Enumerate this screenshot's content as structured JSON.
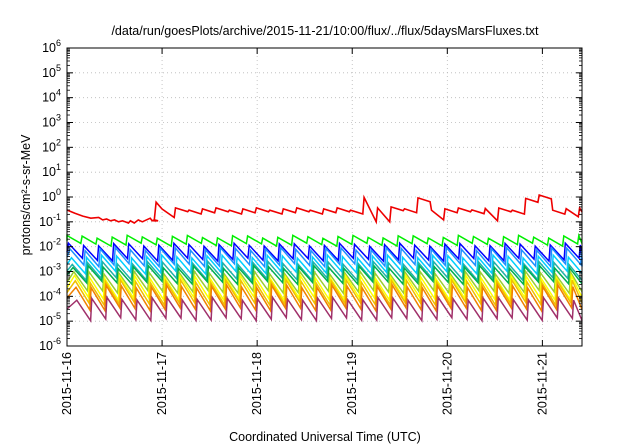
{
  "chart_data": {
    "type": "line",
    "title": "/data/run/goesPlots/archive/2015-11-21/10:00/flux/../flux/5daysMarsFluxes.txt",
    "xlabel": "Coordinated Universal Time (UTC)",
    "ylabel": "protons/cm²-s-sr-MeV",
    "yscale": "log",
    "ylim": [
      1e-06,
      1000000.0
    ],
    "y_ticks": [
      {
        "base": "10",
        "exp": "6",
        "value": 1000000.0
      },
      {
        "base": "10",
        "exp": "5",
        "value": 100000.0
      },
      {
        "base": "10",
        "exp": "4",
        "value": 10000.0
      },
      {
        "base": "10",
        "exp": "3",
        "value": 1000.0
      },
      {
        "base": "10",
        "exp": "2",
        "value": 100.0
      },
      {
        "base": "10",
        "exp": "1",
        "value": 10.0
      },
      {
        "base": "10",
        "exp": "0",
        "value": 1
      },
      {
        "base": "10",
        "exp": "-1",
        "value": 0.1
      },
      {
        "base": "10",
        "exp": "-2",
        "value": 0.01
      },
      {
        "base": "10",
        "exp": "-3",
        "value": 0.001
      },
      {
        "base": "10",
        "exp": "-4",
        "value": 0.0001
      },
      {
        "base": "10",
        "exp": "-5",
        "value": 1e-05
      },
      {
        "base": "10",
        "exp": "-6",
        "value": 1e-06
      }
    ],
    "xlim": [
      "2015-11-16T00:00",
      "2015-11-21T10:00"
    ],
    "x_ticks": [
      "2015-11-16",
      "2015-11-17",
      "2015-11-18",
      "2015-11-19",
      "2015-11-20",
      "2015-11-21"
    ],
    "grid": true,
    "legend": "none",
    "series": [
      {
        "color": "#ee0000",
        "kind": "red",
        "points": [
          [
            "2015-11-16T00:00",
            0.3
          ],
          [
            "2015-11-16T02:00",
            0.22
          ],
          [
            "2015-11-16T04:00",
            0.17
          ],
          [
            "2015-11-16T06:00",
            0.14
          ],
          [
            "2015-11-16T08:00",
            0.15
          ],
          [
            "2015-11-16T09:00",
            0.12
          ],
          [
            "2015-11-16T10:00",
            0.13
          ],
          [
            "2015-11-16T11:00",
            0.11
          ],
          [
            "2015-11-16T12:00",
            0.12
          ],
          [
            "2015-11-16T13:00",
            0.1
          ],
          [
            "2015-11-16T14:00",
            0.11
          ],
          [
            "2015-11-16T15:30",
            0.09
          ],
          [
            "2015-11-16T16:00",
            0.11
          ],
          [
            "2015-11-16T17:00",
            0.09
          ],
          [
            "2015-11-16T18:00",
            0.12
          ],
          [
            "2015-11-16T19:00",
            0.1
          ],
          [
            "2015-11-16T21:00",
            0.14
          ],
          [
            "2015-11-16T21:30",
            0.11
          ],
          [
            "2015-11-16T22:00",
            0.12
          ],
          [
            "2015-11-16T23:00",
            0.11
          ]
        ],
        "sawtooth": {
          "start": "2015-11-17T00:00",
          "end": "2015-11-21T10:00",
          "baseline": 0.33,
          "noise": 0.7,
          "dips": [
            [
              "2015-11-17T04:00",
              0.15
            ],
            [
              "2015-11-19T08:00",
              0.1
            ],
            [
              "2015-11-19T23:00",
              0.12
            ],
            [
              "2015-11-20T13:00",
              0.11
            ],
            [
              "2015-11-21T09:00",
              0.16
            ]
          ],
          "peaks": [
            [
              "2015-11-16T22:00",
              0.8
            ],
            [
              "2015-11-19T02:00",
              0.95
            ],
            [
              "2015-11-19T09:00",
              0.45
            ],
            [
              "2015-11-19T18:00",
              0.84
            ],
            [
              "2015-11-20T08:00",
              0.34
            ],
            [
              "2015-11-20T19:00",
              0.86
            ],
            [
              "2015-11-20T22:00",
              1.1
            ]
          ]
        }
      },
      {
        "color": "#00ee00",
        "kind": "band",
        "top": 0.025,
        "bottom": 0.012,
        "period_hours": 3.8,
        "phase": 0.0
      },
      {
        "color": "#0000ff",
        "kind": "band",
        "top": 0.012,
        "bottom": 0.003,
        "period_hours": 3.8,
        "phase": 0.1
      },
      {
        "color": "#1e90ff",
        "kind": "band",
        "top": 0.008,
        "bottom": 0.0018,
        "period_hours": 3.8,
        "phase": 0.2
      },
      {
        "color": "#00cfff",
        "kind": "band",
        "top": 0.004,
        "bottom": 0.0009,
        "period_hours": 3.8,
        "phase": 0.3
      },
      {
        "color": "#20b2aa",
        "kind": "band",
        "top": 0.0022,
        "bottom": 0.0005,
        "period_hours": 3.8,
        "phase": 0.35
      },
      {
        "color": "#00b050",
        "kind": "band",
        "top": 0.0015,
        "bottom": 0.00035,
        "period_hours": 3.8,
        "phase": 0.4
      },
      {
        "color": "#9acd32",
        "kind": "band",
        "top": 0.0009,
        "bottom": 0.00015,
        "period_hours": 3.8,
        "phase": 0.45
      },
      {
        "color": "#ffff00",
        "kind": "band",
        "top": 0.0006,
        "bottom": 8e-05,
        "period_hours": 3.8,
        "phase": 0.5
      },
      {
        "color": "#f0c000",
        "kind": "band",
        "top": 0.0004,
        "bottom": 5e-05,
        "period_hours": 3.8,
        "phase": 0.55
      },
      {
        "color": "#f08000",
        "kind": "band",
        "top": 0.00025,
        "bottom": 3e-05,
        "period_hours": 3.8,
        "phase": 0.6
      },
      {
        "color": "#a0306a",
        "kind": "band",
        "top": 8e-05,
        "bottom": 1.2e-05,
        "period_hours": 3.8,
        "phase": 0.65
      }
    ]
  }
}
